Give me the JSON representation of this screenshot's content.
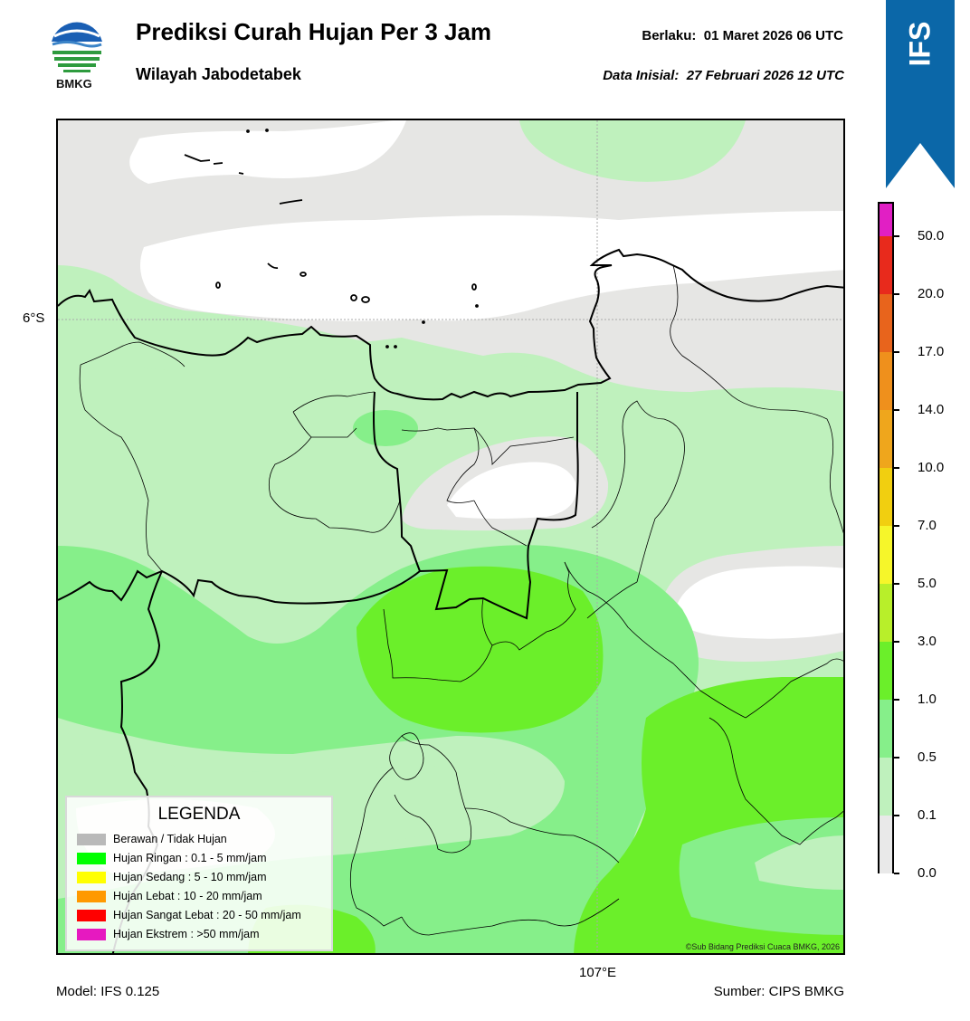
{
  "header": {
    "title": "Prediksi Curah Hujan Per 3 Jam",
    "subtitle": "Wilayah Jabodetabek",
    "valid_label": "Berlaku:",
    "valid_time": "01 Maret 2026 06 UTC",
    "init_label": "Data Inisial:",
    "init_time": "27 Februari 2026 12 UTC",
    "logo_text": "BMKG"
  },
  "banner": {
    "text": "IFS",
    "color": "#0b67a8"
  },
  "map": {
    "lat_label": "6°S",
    "lon_label": "107°E",
    "copyright": "©Sub Bidang Prediksi Cuaca BMKG, 2026",
    "colors": {
      "none": "#ffffff",
      "cloudy": "#e6e6e4",
      "light_01": "#bff1bd",
      "light_05": "#86ef8a",
      "light_1": "#6bef2a",
      "outline": "#000000"
    }
  },
  "legend": {
    "title": "LEGENDA",
    "items": [
      {
        "label": "Berawan / Tidak Hujan",
        "color": "#b9b9b9"
      },
      {
        "label": "Hujan Ringan : 0.1 - 5 mm/jam",
        "color": "#00ff00"
      },
      {
        "label": "Hujan Sedang : 5 - 10 mm/jam",
        "color": "#ffff00"
      },
      {
        "label": "Hujan Lebat : 10 - 20 mm/jam",
        "color": "#ff9900"
      },
      {
        "label": "Hujan Sangat Lebat : 20 - 50 mm/jam",
        "color": "#ff0000"
      },
      {
        "label": "Hujan Ekstrem : >50 mm/jam",
        "color": "#e619c0"
      }
    ]
  },
  "colorbar": {
    "labels": [
      "50.0",
      "20.0",
      "17.0",
      "14.0",
      "10.0",
      "7.0",
      "5.0",
      "3.0",
      "1.0",
      "0.5",
      "0.1",
      "0.0"
    ],
    "colors": [
      "#e11fc4",
      "#e82a1c",
      "#e8641c",
      "#ef901c",
      "#efa61c",
      "#f1cf10",
      "#f6f62a",
      "#b8ef2a",
      "#6bef2a",
      "#86ef8a",
      "#bff1bd",
      "#e9e9e9",
      "#f4f4f4"
    ]
  },
  "footer": {
    "model": "Model: IFS 0.125",
    "source": "Sumber: CIPS BMKG"
  }
}
